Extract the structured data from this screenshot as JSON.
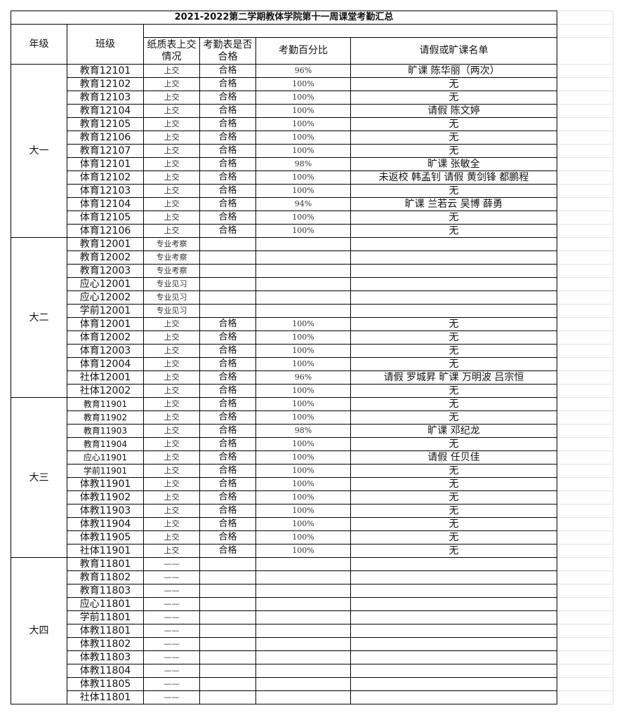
{
  "title": "2021-2022第二学期教体学院第十一周课堂考勤汇总",
  "headers": {
    "grade": "年级",
    "class": "班级",
    "paper": "纸质表上交情况",
    "qualified": "考勤表是否合格",
    "percent": "考勤百分比",
    "names": "请假或旷课名单"
  },
  "groups": [
    {
      "grade": "大一",
      "rows": [
        [
          "教育12101",
          "上交",
          "合格",
          "96%",
          "旷课 陈华丽（两次）"
        ],
        [
          "教育12102",
          "上交",
          "合格",
          "100%",
          "无"
        ],
        [
          "教育12103",
          "上交",
          "合格",
          "100%",
          "无"
        ],
        [
          "教育12104",
          "上交",
          "合格",
          "100%",
          "请假 陈文婷"
        ],
        [
          "教育12105",
          "上交",
          "合格",
          "100%",
          "无"
        ],
        [
          "教育12106",
          "上交",
          "合格",
          "100%",
          "无"
        ],
        [
          "教育12107",
          "上交",
          "合格",
          "100%",
          "无"
        ],
        [
          "体育12101",
          "上交",
          "合格",
          "98%",
          "旷课 张敏全"
        ],
        [
          "体育12102",
          "上交",
          "合格",
          "100%",
          "未返校 韩孟钊  请假 黄剑锋  都鹏程"
        ],
        [
          "体育12103",
          "上交",
          "合格",
          "100%",
          "无"
        ],
        [
          "体育12104",
          "上交",
          "合格",
          "94%",
          "旷课 兰若云  吴博  薛勇"
        ],
        [
          "体育12105",
          "上交",
          "合格",
          "100%",
          "无"
        ],
        [
          "体育12106",
          "上交",
          "合格",
          "100%",
          "无"
        ]
      ]
    },
    {
      "grade": "大二",
      "rows": [
        [
          "教育12001",
          "专业考察",
          "",
          "",
          ""
        ],
        [
          "教育12002",
          "专业考察",
          "",
          "",
          ""
        ],
        [
          "教育12003",
          "专业考察",
          "",
          "",
          ""
        ],
        [
          "应心12001",
          "专业见习",
          "",
          "",
          ""
        ],
        [
          "应心12002",
          "专业见习",
          "",
          "",
          ""
        ],
        [
          "学前12001",
          "专业见习",
          "",
          "",
          ""
        ],
        [
          "体育12001",
          "上交",
          "合格",
          "100%",
          "无"
        ],
        [
          "体育12002",
          "上交",
          "合格",
          "100%",
          "无"
        ],
        [
          "体育12003",
          "上交",
          "合格",
          "100%",
          "无"
        ],
        [
          "体育12004",
          "上交",
          "合格",
          "100%",
          "无"
        ],
        [
          "社体12001",
          "上交",
          "合格",
          "96%",
          "请假 罗城昇  旷课 万明波  吕宗恒"
        ],
        [
          "社体12002",
          "上交",
          "合格",
          "100%",
          "无"
        ]
      ]
    },
    {
      "grade": "大三",
      "rows": [
        [
          "教育11901",
          "上交",
          "合格",
          "100%",
          "无"
        ],
        [
          "教育11902",
          "上交",
          "合格",
          "100%",
          "无"
        ],
        [
          "教育11903",
          "上交",
          "合格",
          "98%",
          "旷课 邓纪龙"
        ],
        [
          "教育11904",
          "上交",
          "合格",
          "100%",
          "无"
        ],
        [
          "应心11901",
          "上交",
          "合格",
          "100%",
          "请假 任贝佳"
        ],
        [
          "学前11901",
          "上交",
          "合格",
          "100%",
          "无"
        ],
        [
          "体教11901",
          "上交",
          "合格",
          "100%",
          "无"
        ],
        [
          "体教11902",
          "上交",
          "合格",
          "100%",
          "无"
        ],
        [
          "体教11903",
          "上交",
          "合格",
          "100%",
          "无"
        ],
        [
          "体教11904",
          "上交",
          "合格",
          "100%",
          "无"
        ],
        [
          "体教11905",
          "上交",
          "合格",
          "100%",
          "无"
        ],
        [
          "社体11901",
          "上交",
          "合格",
          "100%",
          "无"
        ]
      ]
    },
    {
      "grade": "大四",
      "rows": [
        [
          "教育11801",
          "——",
          "",
          "",
          ""
        ],
        [
          "教育11802",
          "——",
          "",
          "",
          ""
        ],
        [
          "教育11803",
          "——",
          "",
          "",
          ""
        ],
        [
          "应心11801",
          "——",
          "",
          "",
          ""
        ],
        [
          "学前11801",
          "——",
          "",
          "",
          ""
        ],
        [
          "体教11801",
          "——",
          "",
          "",
          ""
        ],
        [
          "体教11802",
          "——",
          "",
          "",
          ""
        ],
        [
          "体教11803",
          "——",
          "",
          "",
          ""
        ],
        [
          "体教11804",
          "——",
          "",
          "",
          ""
        ],
        [
          "体教11805",
          "——",
          "",
          "",
          ""
        ],
        [
          "社体11801",
          "——",
          "",
          "",
          ""
        ]
      ]
    }
  ]
}
